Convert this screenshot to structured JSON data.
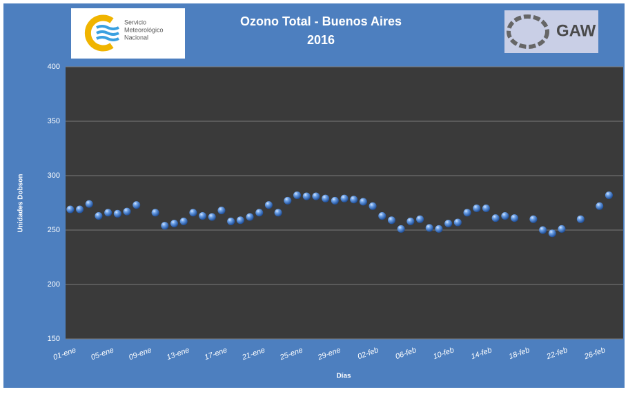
{
  "logos": {
    "smn": [
      "Servicio",
      "Meteorológico",
      "Nacional"
    ],
    "gaw": "GAW"
  },
  "chart_data": {
    "type": "scatter",
    "title": [
      "Ozono Total - Buenos Aires",
      "2016"
    ],
    "y_label": "Unidades Dobson",
    "x_label": "Días",
    "categories": [
      "01-ene",
      null,
      null,
      null,
      "05-ene",
      null,
      null,
      null,
      "09-ene",
      null,
      null,
      null,
      "13-ene",
      null,
      null,
      null,
      "17-ene",
      null,
      null,
      null,
      "21-ene",
      null,
      null,
      null,
      "25-ene",
      null,
      null,
      null,
      "29-ene",
      null,
      null,
      null,
      "02-feb",
      null,
      null,
      null,
      "06-feb",
      null,
      null,
      null,
      "10-feb",
      null,
      null,
      null,
      "14-feb",
      null,
      null,
      null,
      "18-feb",
      null,
      null,
      null,
      "22-feb",
      null,
      null,
      null,
      "26-feb",
      null,
      null
    ],
    "values": [
      269,
      269,
      274,
      263,
      266,
      265,
      267,
      273,
      null,
      266,
      254,
      256,
      258,
      266,
      263,
      262,
      268,
      258,
      259,
      262,
      266,
      273,
      266,
      277,
      282,
      281,
      281,
      279,
      277,
      279,
      278,
      276,
      272,
      263,
      259,
      251,
      258,
      260,
      252,
      251,
      256,
      257,
      266,
      270,
      270,
      261,
      263,
      261,
      null,
      260,
      250,
      247,
      251,
      null,
      260,
      null,
      272,
      282,
      null
    ],
    "color": "#3f7fd6",
    "ylim": [
      150,
      400
    ],
    "yticks": [
      150,
      200,
      250,
      300,
      350,
      400
    ],
    "grid": true
  }
}
